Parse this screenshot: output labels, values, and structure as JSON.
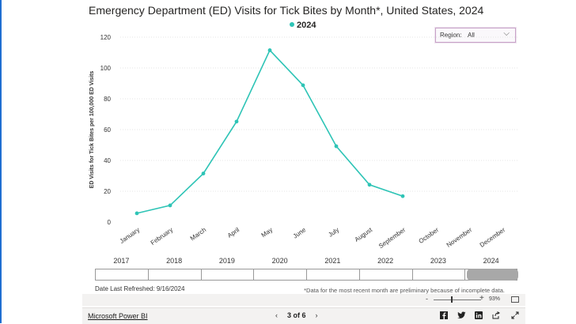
{
  "chart_data": {
    "type": "line",
    "title": "Emergency Department (ED) Visits for Tick Bites by Month*, United States, 2024",
    "ylabel": "ED Visits for Tick Bites per 100,000 ED Visits",
    "xlabel": "",
    "ylim": [
      0,
      120
    ],
    "yticks": [
      "0",
      "20",
      "40",
      "60",
      "80",
      "100",
      "120"
    ],
    "categories": [
      "January",
      "February",
      "March",
      "April",
      "May",
      "June",
      "July",
      "August",
      "September",
      "October",
      "November",
      "December"
    ],
    "series": [
      {
        "name": "2024",
        "color": "#2ec4b6",
        "values": [
          5.7,
          10.8,
          31.5,
          65.2,
          111.5,
          88.8,
          49.2,
          24.2,
          16.8,
          null,
          null,
          null
        ]
      }
    ],
    "legend": "top-center",
    "grid": true
  },
  "filter": {
    "label": "Region:",
    "value": "All"
  },
  "timeline": {
    "years": [
      "2017",
      "2018",
      "2019",
      "2020",
      "2021",
      "2022",
      "2023",
      "2024"
    ],
    "selected": "2024"
  },
  "refresh_text": "Date Last Refreshed: 9/16/2024",
  "note_text": "*Data for the most recent month are preliminary because of incomplete data.",
  "zoom": {
    "level": "93%",
    "minus": "-",
    "plus": "+"
  },
  "footer": {
    "brand": "Microsoft Power BI",
    "page": "3 of 6",
    "prev": "‹",
    "next": "›"
  }
}
